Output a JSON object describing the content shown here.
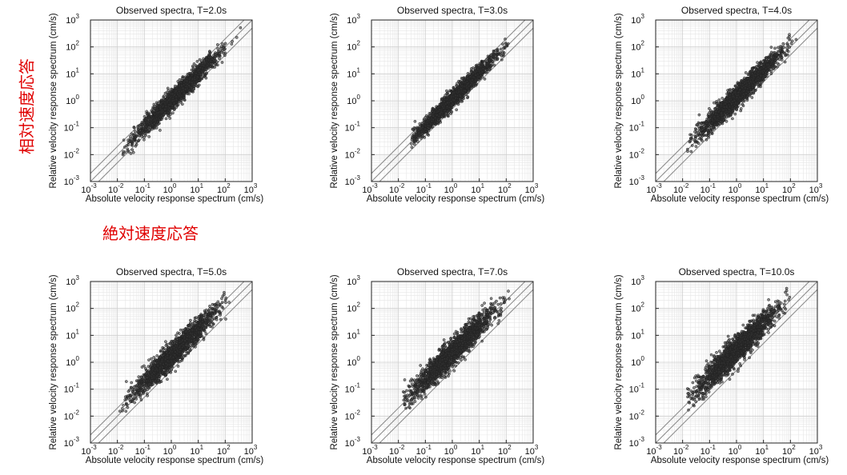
{
  "annotations": {
    "left_label": "相対速度応答",
    "bottom_label": "絶対速度応答"
  },
  "chart_data": [
    {
      "type": "scatter",
      "title": "Observed spectra, T=2.0s",
      "xlabel": "Absolute velocity response spectrum (cm/s)",
      "ylabel": "Relative velocity response spectrum (cm/s)",
      "xscale": "log",
      "yscale": "log",
      "xlim": [
        0.001,
        1000
      ],
      "ylim": [
        0.001,
        1000
      ],
      "tick_labels": [
        "10^-3",
        "10^-2",
        "10^-1",
        "10^0",
        "10^1",
        "10^2",
        "10^3"
      ],
      "grid": true,
      "reference_lines": [
        {
          "y_equals": "x"
        },
        {
          "y_equals": "2x"
        },
        {
          "y_equals": "0.5x"
        }
      ],
      "cloud": {
        "x_min": 0.012,
        "x_max": 500,
        "center_log_x": 0.2,
        "ratio_log_mean": 0.0,
        "ratio_log_sd": 0.18,
        "count": 1800
      },
      "marker_color": "#222222"
    },
    {
      "type": "scatter",
      "title": "Observed spectra, T=3.0s",
      "xlabel": "Absolute velocity response spectrum (cm/s)",
      "ylabel": "Relative velocity response spectrum (cm/s)",
      "xscale": "log",
      "yscale": "log",
      "xlim": [
        0.001,
        1000
      ],
      "ylim": [
        0.001,
        1000
      ],
      "tick_labels": [
        "10^-3",
        "10^-2",
        "10^-1",
        "10^0",
        "10^1",
        "10^2",
        "10^3"
      ],
      "grid": true,
      "reference_lines": [
        {
          "y_equals": "x"
        },
        {
          "y_equals": "2x"
        },
        {
          "y_equals": "0.5x"
        }
      ],
      "cloud": {
        "x_min": 0.03,
        "x_max": 120,
        "center_log_x": 0.1,
        "ratio_log_mean": 0.05,
        "ratio_log_sd": 0.16,
        "count": 1800
      },
      "marker_color": "#222222"
    },
    {
      "type": "scatter",
      "title": "Observed spectra, T=4.0s",
      "xlabel": "Absolute velocity response spectrum (cm/s)",
      "ylabel": "Relative velocity response spectrum (cm/s)",
      "xscale": "log",
      "yscale": "log",
      "xlim": [
        0.001,
        1000
      ],
      "ylim": [
        0.001,
        1000
      ],
      "tick_labels": [
        "10^-3",
        "10^-2",
        "10^-1",
        "10^0",
        "10^1",
        "10^2",
        "10^3"
      ],
      "grid": true,
      "reference_lines": [
        {
          "y_equals": "x"
        },
        {
          "y_equals": "2x"
        },
        {
          "y_equals": "0.5x"
        }
      ],
      "cloud": {
        "x_min": 0.015,
        "x_max": 200,
        "center_log_x": 0.1,
        "ratio_log_mean": 0.15,
        "ratio_log_sd": 0.2,
        "count": 1800
      },
      "marker_color": "#222222"
    },
    {
      "type": "scatter",
      "title": "Observed spectra, T=5.0s",
      "xlabel": "Absolute velocity response spectrum (cm/s)",
      "ylabel": "Relative velocity response spectrum (cm/s)",
      "xscale": "log",
      "yscale": "log",
      "xlim": [
        0.001,
        1000
      ],
      "ylim": [
        0.001,
        1000
      ],
      "tick_labels": [
        "10^-3",
        "10^-2",
        "10^-1",
        "10^0",
        "10^1",
        "10^2",
        "10^3"
      ],
      "grid": true,
      "reference_lines": [
        {
          "y_equals": "x"
        },
        {
          "y_equals": "2x"
        },
        {
          "y_equals": "0.5x"
        }
      ],
      "cloud": {
        "x_min": 0.012,
        "x_max": 150,
        "center_log_x": 0.1,
        "ratio_log_mean": 0.25,
        "ratio_log_sd": 0.22,
        "count": 1800
      },
      "marker_color": "#222222"
    },
    {
      "type": "scatter",
      "title": "Observed spectra, T=7.0s",
      "xlabel": "Absolute velocity response spectrum (cm/s)",
      "ylabel": "Relative velocity response spectrum (cm/s)",
      "xscale": "log",
      "yscale": "log",
      "xlim": [
        0.001,
        1000
      ],
      "ylim": [
        0.001,
        1000
      ],
      "tick_labels": [
        "10^-3",
        "10^-2",
        "10^-1",
        "10^0",
        "10^1",
        "10^2",
        "10^3"
      ],
      "grid": true,
      "reference_lines": [
        {
          "y_equals": "x"
        },
        {
          "y_equals": "2x"
        },
        {
          "y_equals": "0.5x"
        }
      ],
      "cloud": {
        "x_min": 0.015,
        "x_max": 150,
        "center_log_x": 0.0,
        "ratio_log_mean": 0.35,
        "ratio_log_sd": 0.24,
        "count": 1800
      },
      "marker_color": "#222222"
    },
    {
      "type": "scatter",
      "title": "Observed spectra, T=10.0s",
      "xlabel": "Absolute velocity response spectrum (cm/s)",
      "ylabel": "Relative velocity response spectrum (cm/s)",
      "xscale": "log",
      "yscale": "log",
      "xlim": [
        0.001,
        1000
      ],
      "ylim": [
        0.001,
        1000
      ],
      "tick_labels": [
        "10^-3",
        "10^-2",
        "10^-1",
        "10^0",
        "10^1",
        "10^2",
        "10^3"
      ],
      "grid": true,
      "reference_lines": [
        {
          "y_equals": "x"
        },
        {
          "y_equals": "2x"
        },
        {
          "y_equals": "0.5x"
        }
      ],
      "cloud": {
        "x_min": 0.015,
        "x_max": 120,
        "center_log_x": 0.0,
        "ratio_log_mean": 0.45,
        "ratio_log_sd": 0.25,
        "count": 1800
      },
      "marker_color": "#222222"
    }
  ]
}
